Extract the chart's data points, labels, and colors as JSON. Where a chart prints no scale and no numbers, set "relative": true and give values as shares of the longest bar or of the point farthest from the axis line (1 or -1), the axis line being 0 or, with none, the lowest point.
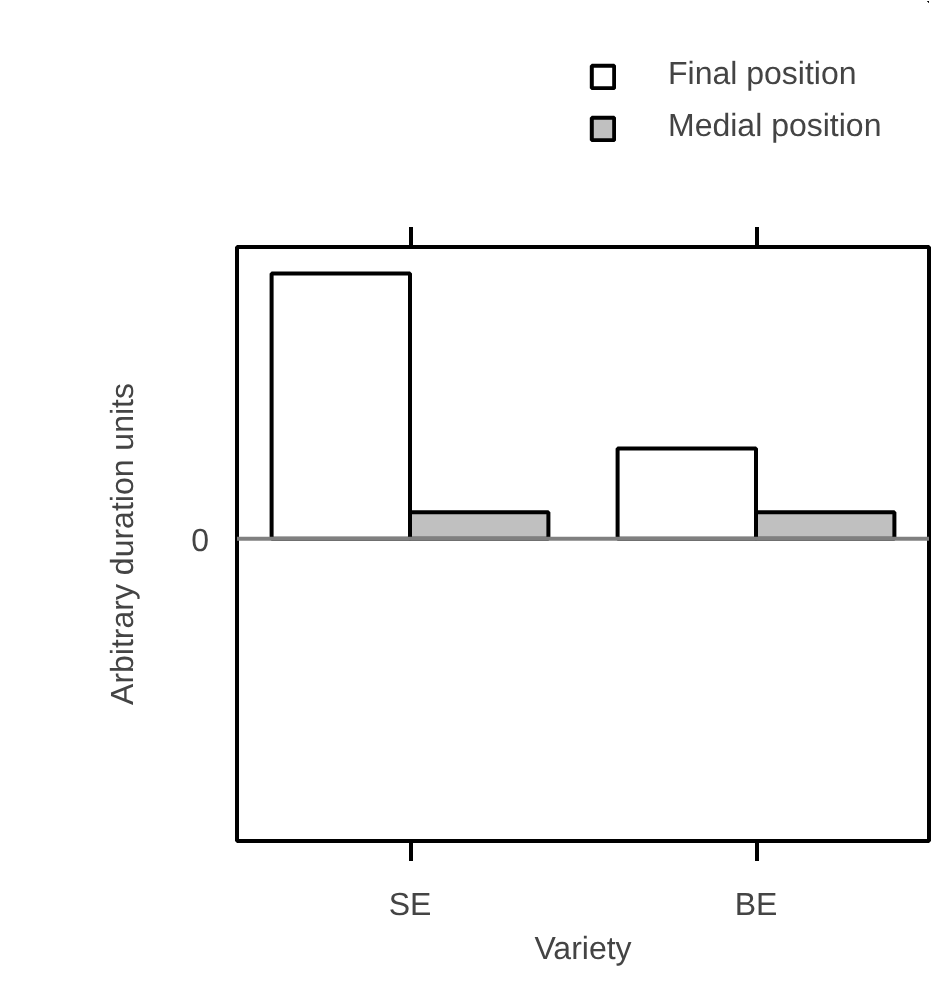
{
  "chart_data": {
    "type": "bar",
    "relative": true,
    "xlabel": "Variety",
    "ylabel": "Arbitrary duration units",
    "categories": [
      "SE",
      "BE"
    ],
    "series": [
      {
        "name": "Final position",
        "color": "#ffffff",
        "values": [
          1,
          0.34
        ]
      },
      {
        "name": "Medial position",
        "color": "#c0c0c0",
        "values": [
          0.1,
          0.1
        ]
      }
    ],
    "ref_lines": [
      {
        "axis": "y",
        "value": 0,
        "label": "0",
        "color": "#808080"
      }
    ],
    "legend": "top",
    "grid": false
  }
}
